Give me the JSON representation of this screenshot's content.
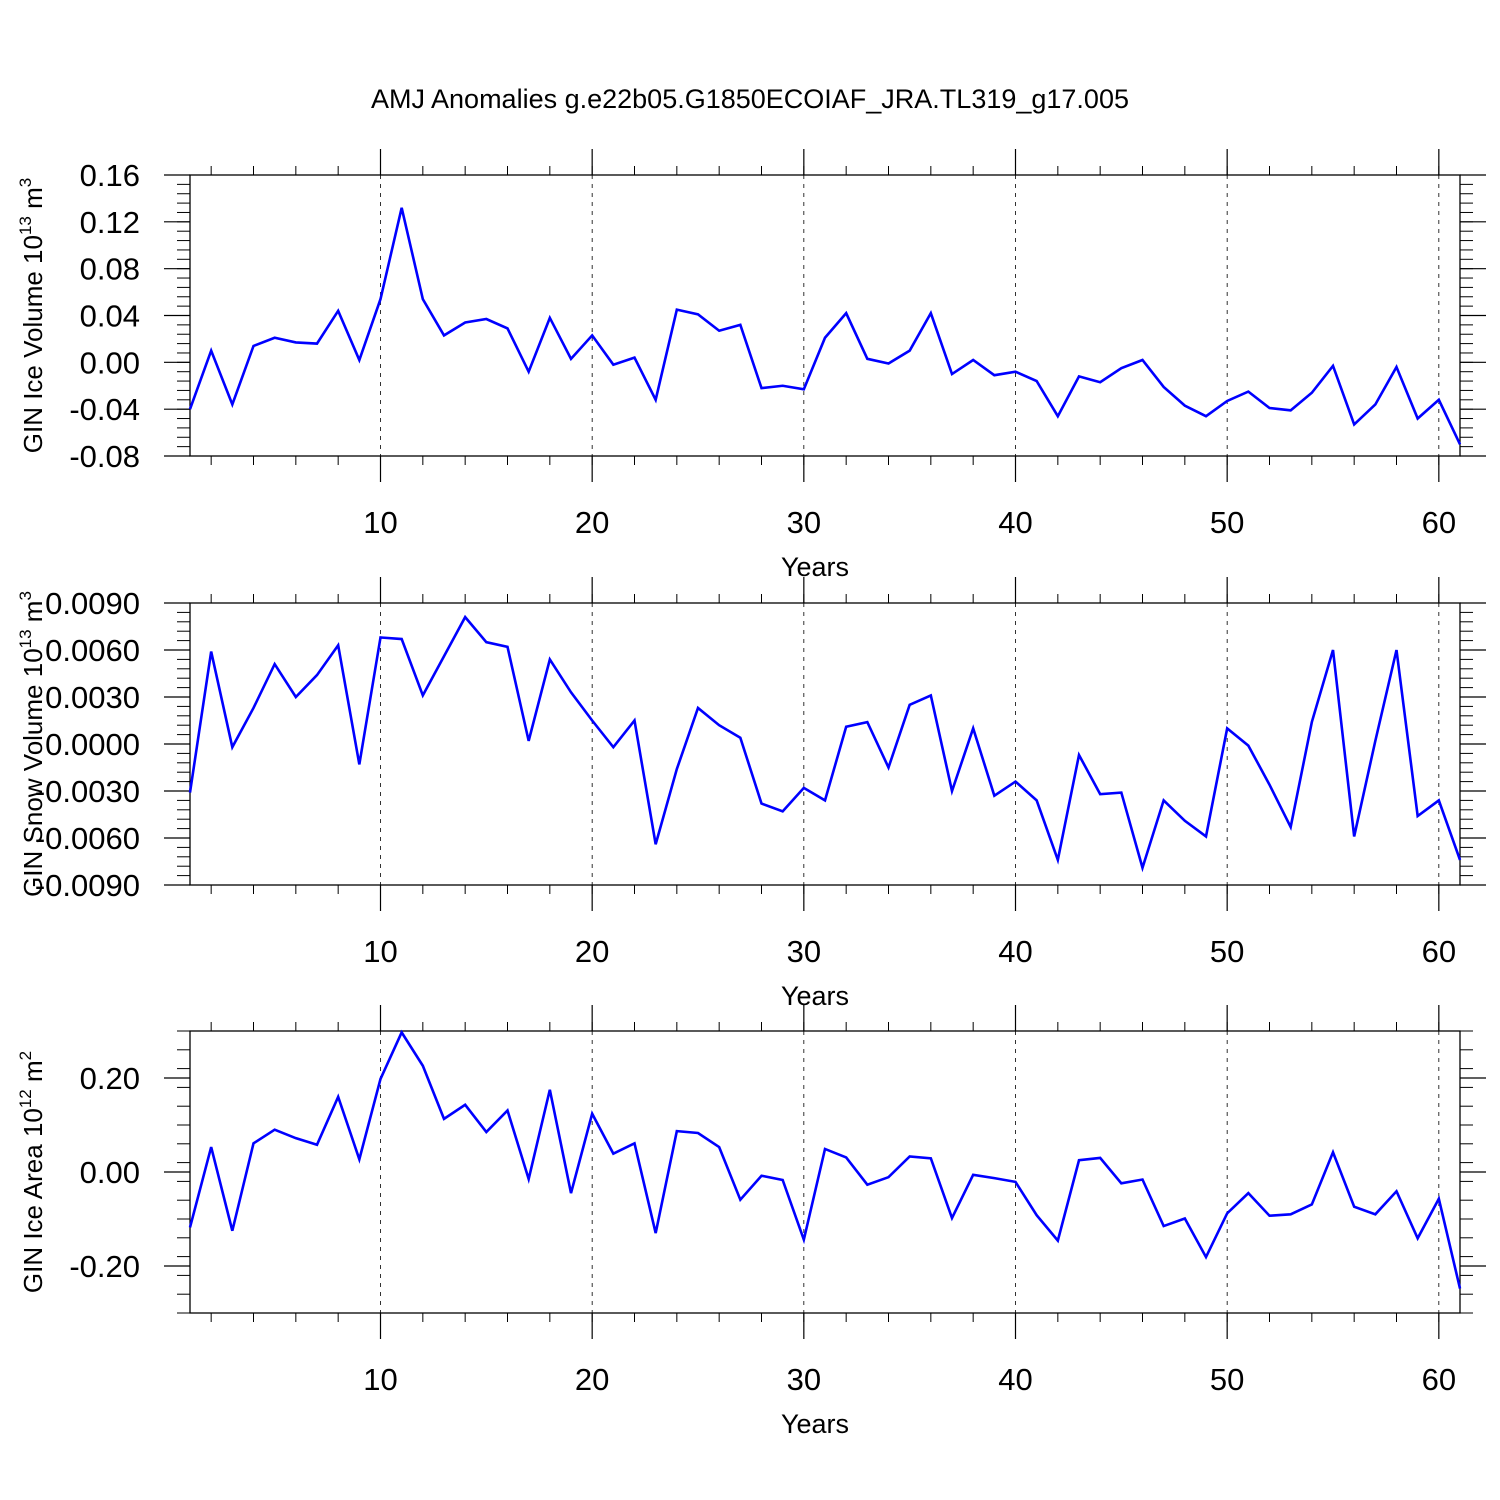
{
  "title": "AMJ Anomalies g.e22b05.G1850ECOIAF_JRA.TL319_g17.005",
  "line_color": "#0000ff",
  "chart_data": [
    {
      "type": "line",
      "ylabel": "GIN Ice Volume 10",
      "ylabel_exp": "13",
      "ylabel_unit": " m",
      "ylabel_unit_exp": "3",
      "xlabel": "Years",
      "xlim": [
        1,
        61
      ],
      "ylim": [
        -0.08,
        0.16
      ],
      "xticks": [
        "10",
        "20",
        "30",
        "40",
        "50",
        "60"
      ],
      "yticks": [
        "-0.08",
        "-0.04",
        "0.00",
        "0.04",
        "0.08",
        "0.12",
        "0.16"
      ],
      "series": [
        {
          "values": [
            -0.04,
            0.01,
            -0.036,
            0.014,
            0.021,
            0.017,
            0.016,
            0.044,
            0.002,
            0.054,
            0.132,
            0.054,
            0.023,
            0.034,
            0.037,
            0.029,
            -0.008,
            0.038,
            0.003,
            0.023,
            -0.002,
            0.004,
            -0.032,
            0.045,
            0.041,
            0.027,
            0.032,
            -0.022,
            -0.02,
            -0.023,
            0.021,
            0.042,
            0.003,
            -0.001,
            0.01,
            0.042,
            -0.01,
            0.002,
            -0.011,
            -0.008,
            -0.016,
            -0.046,
            -0.012,
            -0.017,
            -0.005,
            0.002,
            -0.021,
            -0.037,
            -0.046,
            -0.033,
            -0.025,
            -0.039,
            -0.041,
            -0.026,
            -0.003,
            -0.053,
            -0.036,
            -0.004,
            -0.048,
            -0.032,
            -0.07
          ]
        }
      ]
    },
    {
      "type": "line",
      "ylabel": "GIN Snow Volume 10",
      "ylabel_exp": "13",
      "ylabel_unit": " m",
      "ylabel_unit_exp": "3",
      "xlabel": "Years",
      "xlim": [
        1,
        61
      ],
      "ylim": [
        -0.009,
        0.009
      ],
      "xticks": [
        "10",
        "20",
        "30",
        "40",
        "50",
        "60"
      ],
      "yticks": [
        "-0.0090",
        "-0.0060",
        "-0.0030",
        "0.0000",
        "0.0030",
        "0.0060",
        "0.0090"
      ],
      "series": [
        {
          "values": [
            -0.0031,
            0.0059,
            -0.0002,
            0.0023,
            0.0051,
            0.003,
            0.0044,
            0.0063,
            -0.0013,
            0.0068,
            0.0067,
            0.0031,
            0.0056,
            0.0081,
            0.0065,
            0.0062,
            0.0002,
            0.0054,
            0.0033,
            0.0015,
            -0.0002,
            0.0015,
            -0.0064,
            -0.0016,
            0.0023,
            0.0012,
            0.0004,
            -0.0038,
            -0.0043,
            -0.0028,
            -0.0036,
            0.0011,
            0.0014,
            -0.0015,
            0.0025,
            0.0031,
            -0.003,
            0.001,
            -0.0033,
            -0.0024,
            -0.0036,
            -0.0074,
            -0.0007,
            -0.0032,
            -0.0031,
            -0.0079,
            -0.0036,
            -0.0049,
            -0.0059,
            0.001,
            -0.0001,
            -0.0026,
            -0.0053,
            0.0014,
            0.006,
            -0.0059,
            0.0002,
            0.006,
            -0.0046,
            -0.0036,
            -0.0074
          ]
        }
      ]
    },
    {
      "type": "line",
      "ylabel": "GIN Ice Area 10",
      "ylabel_exp": "12",
      "ylabel_unit": " m",
      "ylabel_unit_exp": "2",
      "xlabel": "Years",
      "xlim": [
        1,
        61
      ],
      "ylim": [
        -0.3,
        0.3
      ],
      "xticks": [
        "10",
        "20",
        "30",
        "40",
        "50",
        "60"
      ],
      "yticks": [
        "-0.20",
        "0.00",
        "0.20"
      ],
      "series": [
        {
          "values": [
            -0.118,
            0.053,
            -0.125,
            0.061,
            0.09,
            0.072,
            0.058,
            0.16,
            0.027,
            0.198,
            0.297,
            0.226,
            0.113,
            0.143,
            0.085,
            0.131,
            -0.015,
            0.175,
            -0.045,
            0.124,
            0.039,
            0.061,
            -0.13,
            0.087,
            0.083,
            0.053,
            -0.059,
            -0.008,
            -0.017,
            -0.144,
            0.049,
            0.031,
            -0.027,
            -0.011,
            0.033,
            0.029,
            -0.098,
            -0.006,
            -0.013,
            -0.021,
            -0.092,
            -0.146,
            0.025,
            0.03,
            -0.024,
            -0.016,
            -0.115,
            -0.099,
            -0.181,
            -0.088,
            -0.045,
            -0.093,
            -0.09,
            -0.069,
            0.042,
            -0.074,
            -0.09,
            -0.041,
            -0.141,
            -0.057,
            -0.248
          ]
        }
      ]
    }
  ]
}
